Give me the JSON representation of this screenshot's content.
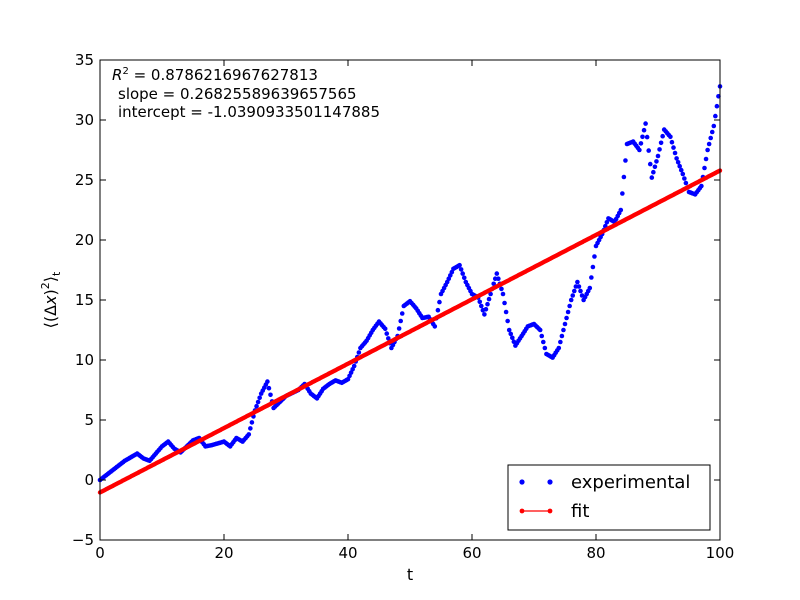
{
  "chart_data": {
    "type": "scatter",
    "title": "",
    "xlabel": "t",
    "ylabel_parts": {
      "pre": "⟨(Δ",
      "var": "x",
      "post": ")",
      "sup": "2",
      "close": "⟩",
      "sub": "t"
    },
    "xlim": [
      0,
      100
    ],
    "ylim": [
      -5,
      35
    ],
    "xticks": [
      0,
      20,
      40,
      60,
      80,
      100
    ],
    "xtick_labels": [
      "0",
      "20",
      "40",
      "60",
      "80",
      "100"
    ],
    "yticks": [
      -5,
      0,
      5,
      10,
      15,
      20,
      25,
      30,
      35
    ],
    "ytick_labels": [
      "−5",
      "0",
      "5",
      "10",
      "15",
      "20",
      "25",
      "30",
      "35"
    ],
    "grid": false,
    "legend": {
      "placement": "lower-right",
      "entries": [
        {
          "label": "experimental",
          "style": "dots",
          "color": "#0000ff"
        },
        {
          "label": "fit",
          "style": "line-dots",
          "color": "#ff0000"
        }
      ]
    },
    "annotation": {
      "r2_symbol": "R",
      "r2_sup": "2",
      "r2_value": " = 0.8786216967627813",
      "slope_text": "slope = 0.26825589639657565",
      "intercept_text": "intercept = -1.0390933501147885"
    },
    "fit": {
      "slope": 0.26825589639657565,
      "intercept": -1.0390933501147885
    },
    "series": [
      {
        "name": "experimental",
        "color": "#0000ff",
        "points": [
          [
            0,
            0
          ],
          [
            2,
            0.8
          ],
          [
            4,
            1.6
          ],
          [
            6,
            2.2
          ],
          [
            7,
            1.8
          ],
          [
            8,
            1.6
          ],
          [
            10,
            2.8
          ],
          [
            11,
            3.2
          ],
          [
            12,
            2.6
          ],
          [
            13,
            2.3
          ],
          [
            15,
            3.3
          ],
          [
            16,
            3.5
          ],
          [
            17,
            2.8
          ],
          [
            18,
            2.9
          ],
          [
            20,
            3.2
          ],
          [
            21,
            2.8
          ],
          [
            22,
            3.5
          ],
          [
            23,
            3.2
          ],
          [
            24,
            3.8
          ],
          [
            25,
            5.8
          ],
          [
            26,
            7.2
          ],
          [
            27,
            8.2
          ],
          [
            28,
            6.0
          ],
          [
            29,
            6.5
          ],
          [
            30,
            7.0
          ],
          [
            32,
            7.5
          ],
          [
            33,
            8.0
          ],
          [
            34,
            7.2
          ],
          [
            35,
            6.8
          ],
          [
            36,
            7.6
          ],
          [
            37,
            8.0
          ],
          [
            38,
            8.3
          ],
          [
            39,
            8.1
          ],
          [
            40,
            8.4
          ],
          [
            41,
            9.5
          ],
          [
            42,
            11.0
          ],
          [
            43,
            11.6
          ],
          [
            44,
            12.5
          ],
          [
            45,
            13.2
          ],
          [
            46,
            12.6
          ],
          [
            47,
            11.0
          ],
          [
            48,
            12.0
          ],
          [
            49,
            14.5
          ],
          [
            50,
            14.9
          ],
          [
            51,
            14.3
          ],
          [
            52,
            13.5
          ],
          [
            53,
            13.6
          ],
          [
            54,
            12.8
          ],
          [
            55,
            15.5
          ],
          [
            56,
            16.5
          ],
          [
            57,
            17.6
          ],
          [
            58,
            17.9
          ],
          [
            59,
            16.5
          ],
          [
            60,
            15.5
          ],
          [
            61,
            15.2
          ],
          [
            62,
            13.8
          ],
          [
            63,
            15.5
          ],
          [
            64,
            17.2
          ],
          [
            65,
            15.5
          ],
          [
            66,
            12.5
          ],
          [
            67,
            11.2
          ],
          [
            68,
            12.0
          ],
          [
            69,
            12.8
          ],
          [
            70,
            13.0
          ],
          [
            71,
            12.5
          ],
          [
            72,
            10.5
          ],
          [
            73,
            10.2
          ],
          [
            74,
            11.0
          ],
          [
            75,
            13.0
          ],
          [
            76,
            15.0
          ],
          [
            77,
            16.5
          ],
          [
            78,
            15.0
          ],
          [
            79,
            16.0
          ],
          [
            80,
            19.5
          ],
          [
            81,
            20.5
          ],
          [
            82,
            21.8
          ],
          [
            83,
            21.5
          ],
          [
            84,
            22.5
          ],
          [
            85,
            28.0
          ],
          [
            86,
            28.2
          ],
          [
            87,
            27.5
          ],
          [
            88,
            29.7
          ],
          [
            89,
            25.2
          ],
          [
            90,
            27.0
          ],
          [
            91,
            29.2
          ],
          [
            92,
            28.6
          ],
          [
            93,
            26.8
          ],
          [
            94,
            25.5
          ],
          [
            95,
            24.0
          ],
          [
            96,
            23.8
          ],
          [
            97,
            24.5
          ],
          [
            98,
            27.5
          ],
          [
            99,
            29.5
          ],
          [
            100,
            32.8
          ]
        ]
      }
    ]
  }
}
